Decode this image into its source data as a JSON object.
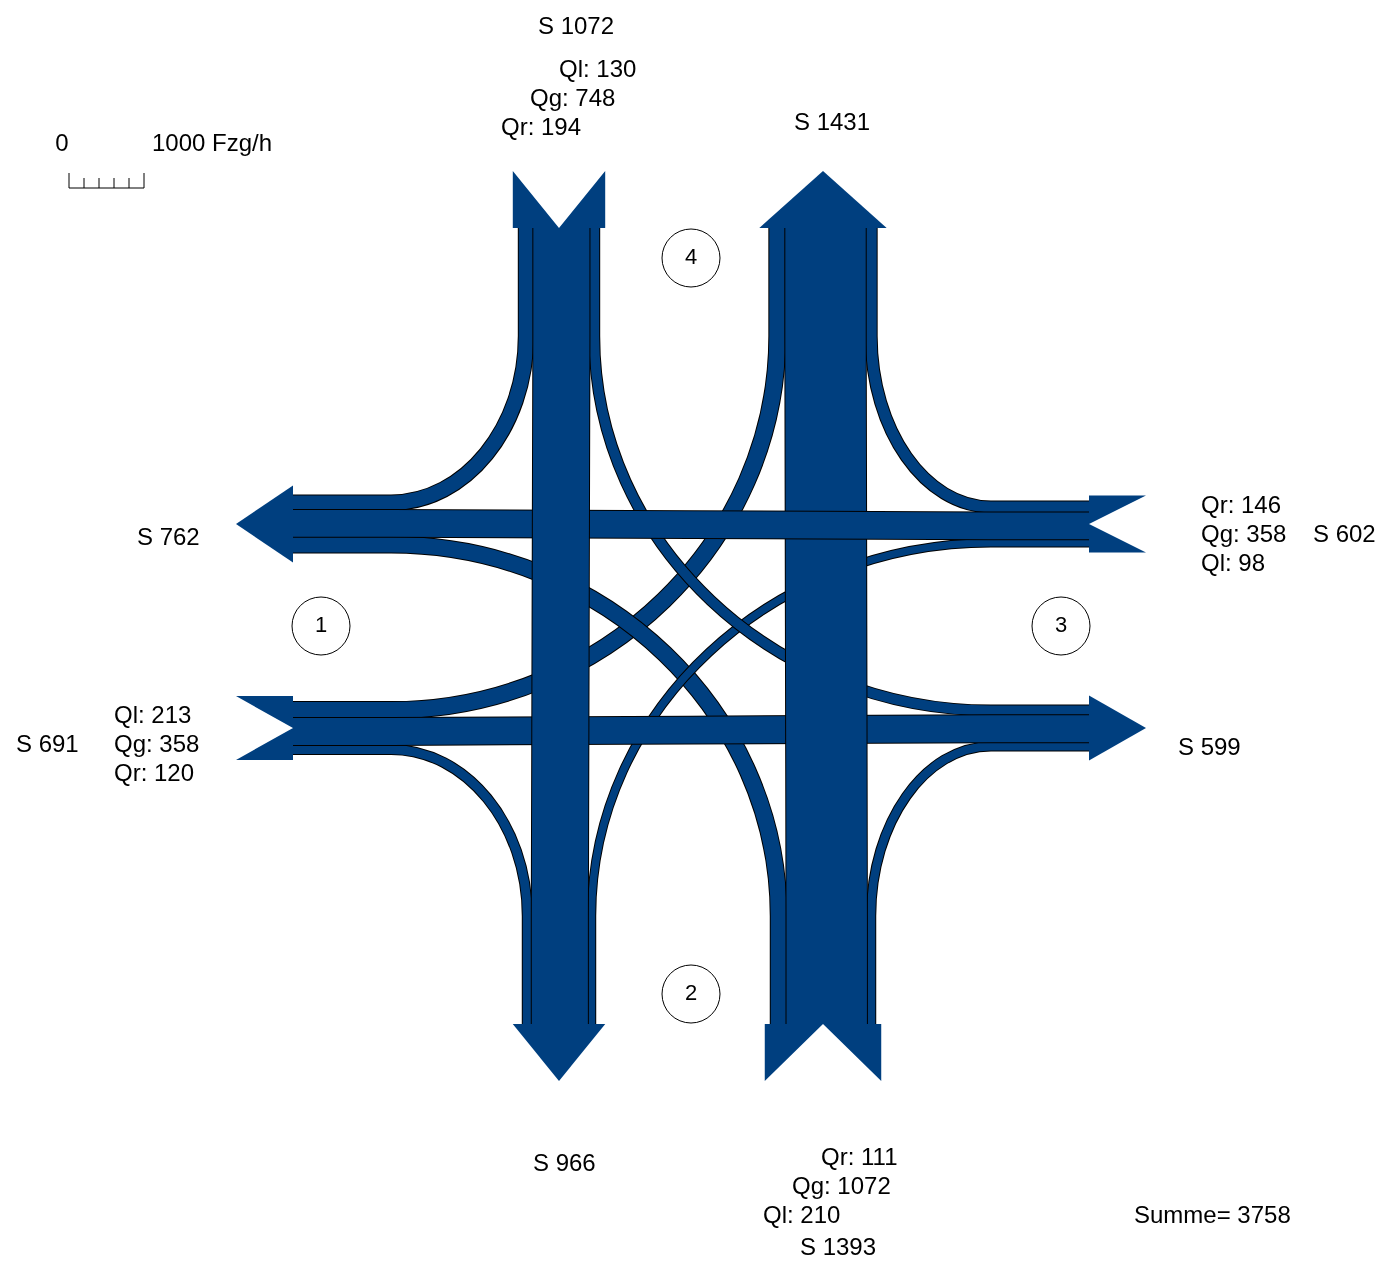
{
  "chart_data": {
    "type": "other",
    "categories": [
      "1",
      "2",
      "3",
      "4"
    ],
    "series": [
      {
        "color": "#003f7f",
        "values": [
          213,
          210,
          98,
          130
        ],
        "value_labels": [
          "Ql: 213",
          "Ql: 210",
          "Ql: 98",
          "Ql: 130"
        ]
      },
      {
        "color": "#003f7f",
        "values": [
          358,
          1072,
          358,
          748
        ],
        "value_labels": [
          "Qg: 358",
          "Qg: 1072",
          "Qg: 358",
          "Qg: 748"
        ]
      },
      {
        "color": "#003f7f",
        "values": [
          120,
          111,
          146,
          194
        ],
        "value_labels": [
          "Qr: 120",
          "Qr: 111",
          "Qr: 146",
          "Qr: 194"
        ]
      }
    ],
    "totals": [
      "S 691",
      "S 1393",
      "S 602",
      "S 1072"
    ],
    "annotations": [
      "S 762",
      "S 966",
      "S 599",
      "S 1431",
      "Summe= 3758",
      "0",
      "1000 Fzg/h"
    ]
  }
}
